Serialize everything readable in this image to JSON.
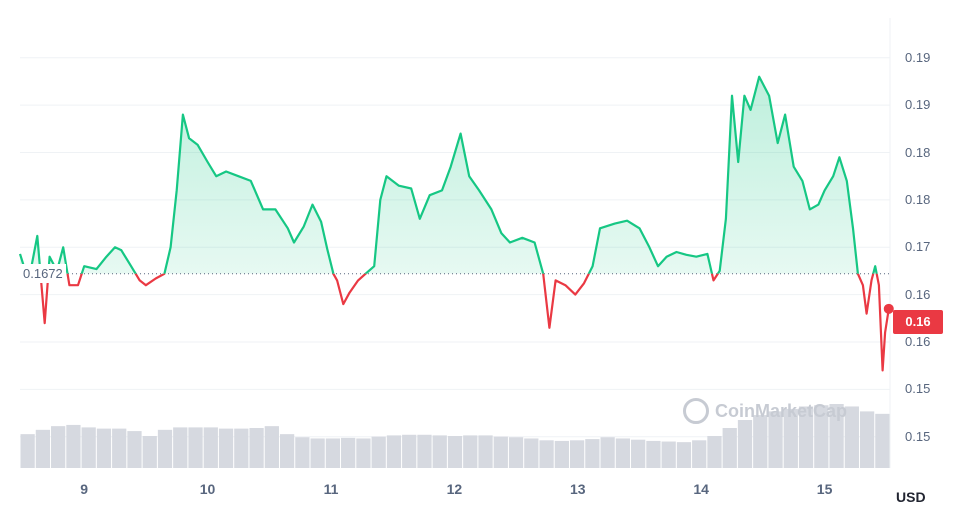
{
  "chart_data": {
    "type": "area",
    "currency": "USD",
    "reference_value": 0.1672,
    "reference_label": "0.1672",
    "current_price": 0.1635,
    "current_price_label": "0.16",
    "y_axis_ticks": [
      "0.19",
      "0.19",
      "0.18",
      "0.18",
      "0.17",
      "0.16",
      "0.16",
      "0.15",
      "0.15"
    ],
    "y_axis_values": [
      0.19,
      0.185,
      0.18,
      0.175,
      0.17,
      0.165,
      0.16,
      0.155,
      0.15
    ],
    "x_axis_ticks": [
      "9",
      "10",
      "11",
      "12",
      "13",
      "14",
      "15"
    ],
    "x_axis_values": [
      9,
      10,
      11,
      12,
      13,
      14,
      15
    ],
    "x_range": [
      8.48,
      15.53
    ],
    "y_range": [
      0.1467,
      0.1942
    ],
    "colors": {
      "above": "#16c784",
      "below": "#ea3943",
      "volume": "#d6d9e0",
      "grid": "#eff2f5"
    },
    "series": [
      {
        "x": 8.48,
        "y": 0.1693
      },
      {
        "x": 8.55,
        "y": 0.1664
      },
      {
        "x": 8.62,
        "y": 0.1712
      },
      {
        "x": 8.68,
        "y": 0.162
      },
      {
        "x": 8.72,
        "y": 0.169
      },
      {
        "x": 8.78,
        "y": 0.1675
      },
      {
        "x": 8.83,
        "y": 0.17
      },
      {
        "x": 8.88,
        "y": 0.166
      },
      {
        "x": 8.95,
        "y": 0.166
      },
      {
        "x": 9.0,
        "y": 0.168
      },
      {
        "x": 9.1,
        "y": 0.1677
      },
      {
        "x": 9.18,
        "y": 0.169
      },
      {
        "x": 9.25,
        "y": 0.17
      },
      {
        "x": 9.3,
        "y": 0.1697
      },
      {
        "x": 9.38,
        "y": 0.168
      },
      {
        "x": 9.45,
        "y": 0.1665
      },
      {
        "x": 9.5,
        "y": 0.166
      },
      {
        "x": 9.58,
        "y": 0.1667
      },
      {
        "x": 9.65,
        "y": 0.1672
      },
      {
        "x": 9.7,
        "y": 0.17
      },
      {
        "x": 9.75,
        "y": 0.176
      },
      {
        "x": 9.8,
        "y": 0.184
      },
      {
        "x": 9.85,
        "y": 0.1815
      },
      {
        "x": 9.92,
        "y": 0.1808
      },
      {
        "x": 10.0,
        "y": 0.179
      },
      {
        "x": 10.07,
        "y": 0.1775
      },
      {
        "x": 10.15,
        "y": 0.178
      },
      {
        "x": 10.25,
        "y": 0.1775
      },
      {
        "x": 10.35,
        "y": 0.177
      },
      {
        "x": 10.45,
        "y": 0.174
      },
      {
        "x": 10.55,
        "y": 0.174
      },
      {
        "x": 10.65,
        "y": 0.172
      },
      {
        "x": 10.7,
        "y": 0.1705
      },
      {
        "x": 10.78,
        "y": 0.1722
      },
      {
        "x": 10.85,
        "y": 0.1745
      },
      {
        "x": 10.92,
        "y": 0.1727
      },
      {
        "x": 10.97,
        "y": 0.1698
      },
      {
        "x": 11.02,
        "y": 0.1672
      },
      {
        "x": 11.05,
        "y": 0.1665
      },
      {
        "x": 11.1,
        "y": 0.164
      },
      {
        "x": 11.15,
        "y": 0.1652
      },
      {
        "x": 11.22,
        "y": 0.1665
      },
      {
        "x": 11.28,
        "y": 0.1672
      },
      {
        "x": 11.35,
        "y": 0.168
      },
      {
        "x": 11.4,
        "y": 0.175
      },
      {
        "x": 11.45,
        "y": 0.1775
      },
      {
        "x": 11.55,
        "y": 0.1765
      },
      {
        "x": 11.65,
        "y": 0.1762
      },
      {
        "x": 11.72,
        "y": 0.173
      },
      {
        "x": 11.8,
        "y": 0.1755
      },
      {
        "x": 11.9,
        "y": 0.176
      },
      {
        "x": 11.97,
        "y": 0.1785
      },
      {
        "x": 12.05,
        "y": 0.182
      },
      {
        "x": 12.12,
        "y": 0.1775
      },
      {
        "x": 12.2,
        "y": 0.176
      },
      {
        "x": 12.3,
        "y": 0.174
      },
      {
        "x": 12.38,
        "y": 0.1715
      },
      {
        "x": 12.45,
        "y": 0.1705
      },
      {
        "x": 12.55,
        "y": 0.171
      },
      {
        "x": 12.65,
        "y": 0.1705
      },
      {
        "x": 12.72,
        "y": 0.1672
      },
      {
        "x": 12.77,
        "y": 0.1615
      },
      {
        "x": 12.82,
        "y": 0.1665
      },
      {
        "x": 12.9,
        "y": 0.166
      },
      {
        "x": 12.98,
        "y": 0.165
      },
      {
        "x": 13.05,
        "y": 0.1662
      },
      {
        "x": 13.12,
        "y": 0.168
      },
      {
        "x": 13.18,
        "y": 0.172
      },
      {
        "x": 13.3,
        "y": 0.1725
      },
      {
        "x": 13.4,
        "y": 0.1728
      },
      {
        "x": 13.5,
        "y": 0.172
      },
      {
        "x": 13.58,
        "y": 0.17
      },
      {
        "x": 13.65,
        "y": 0.168
      },
      {
        "x": 13.72,
        "y": 0.169
      },
      {
        "x": 13.8,
        "y": 0.1695
      },
      {
        "x": 13.88,
        "y": 0.1692
      },
      {
        "x": 13.96,
        "y": 0.169
      },
      {
        "x": 14.05,
        "y": 0.1693
      },
      {
        "x": 14.1,
        "y": 0.1665
      },
      {
        "x": 14.15,
        "y": 0.1675
      },
      {
        "x": 14.2,
        "y": 0.173
      },
      {
        "x": 14.25,
        "y": 0.186
      },
      {
        "x": 14.3,
        "y": 0.179
      },
      {
        "x": 14.35,
        "y": 0.186
      },
      {
        "x": 14.4,
        "y": 0.1845
      },
      {
        "x": 14.47,
        "y": 0.188
      },
      {
        "x": 14.55,
        "y": 0.186
      },
      {
        "x": 14.62,
        "y": 0.181
      },
      {
        "x": 14.68,
        "y": 0.184
      },
      {
        "x": 14.75,
        "y": 0.1785
      },
      {
        "x": 14.82,
        "y": 0.177
      },
      {
        "x": 14.88,
        "y": 0.174
      },
      {
        "x": 14.95,
        "y": 0.1745
      },
      {
        "x": 15.0,
        "y": 0.176
      },
      {
        "x": 15.07,
        "y": 0.1775
      },
      {
        "x": 15.12,
        "y": 0.1795
      },
      {
        "x": 15.18,
        "y": 0.177
      },
      {
        "x": 15.23,
        "y": 0.172
      },
      {
        "x": 15.27,
        "y": 0.1672
      },
      {
        "x": 15.31,
        "y": 0.166
      },
      {
        "x": 15.34,
        "y": 0.163
      },
      {
        "x": 15.38,
        "y": 0.1665
      },
      {
        "x": 15.41,
        "y": 0.168
      },
      {
        "x": 15.44,
        "y": 0.166
      },
      {
        "x": 15.47,
        "y": 0.157
      },
      {
        "x": 15.49,
        "y": 0.161
      },
      {
        "x": 15.52,
        "y": 0.1635
      }
    ],
    "volume": [
      0.55,
      0.62,
      0.68,
      0.7,
      0.66,
      0.64,
      0.64,
      0.6,
      0.52,
      0.62,
      0.66,
      0.66,
      0.66,
      0.64,
      0.64,
      0.65,
      0.68,
      0.55,
      0.5,
      0.48,
      0.48,
      0.49,
      0.48,
      0.51,
      0.53,
      0.54,
      0.54,
      0.53,
      0.52,
      0.53,
      0.53,
      0.51,
      0.5,
      0.48,
      0.45,
      0.44,
      0.45,
      0.47,
      0.5,
      0.48,
      0.46,
      0.44,
      0.43,
      0.42,
      0.45,
      0.52,
      0.65,
      0.78,
      0.86,
      0.92,
      0.96,
      1.0,
      1.02,
      1.04,
      1.0,
      0.92,
      0.88
    ]
  }
}
